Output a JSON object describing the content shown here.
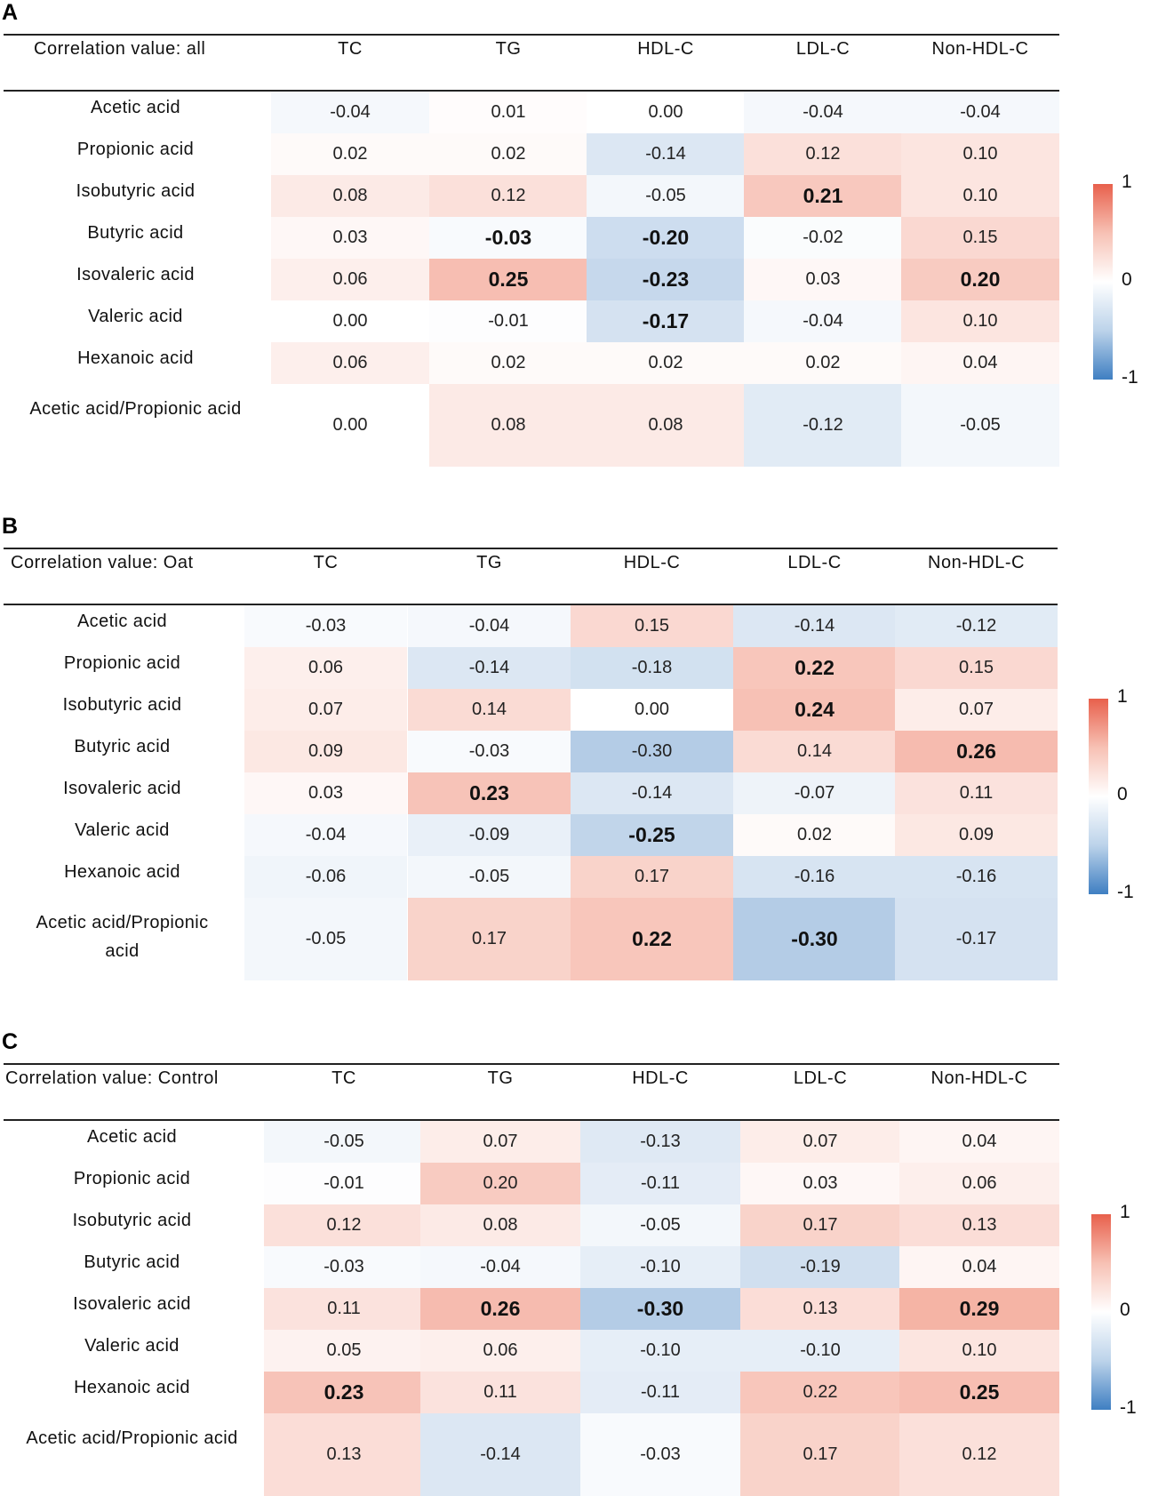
{
  "columns": [
    "TC",
    "TG",
    "HDL-C",
    "LDL-C",
    "Non-HDL-C"
  ],
  "rows": [
    "Acetic acid",
    "Propionic acid",
    "Isobutyric acid",
    "Butyric acid",
    "Isovaleric acid",
    "Valeric acid",
    "Hexanoic acid",
    "Acetic acid/Propionic acid"
  ],
  "legend": {
    "max": "1",
    "mid": "0",
    "min": "-1",
    "color_pos": "#e8604c",
    "color_neg": "#3f7fc2"
  },
  "chart_data": [
    {
      "type": "heatmap",
      "panel": "A",
      "title": "Correlation value: all",
      "columns": [
        "TC",
        "TG",
        "HDL-C",
        "LDL-C",
        "Non-HDL-C"
      ],
      "rows": [
        "Acetic acid",
        "Propionic acid",
        "Isobutyric acid",
        "Butyric acid",
        "Isovaleric acid",
        "Valeric acid",
        "Hexanoic acid",
        "Acetic acid/Propionic acid"
      ],
      "values": [
        [
          "-0.04",
          "0.01",
          "0.00",
          "-0.04",
          "-0.04"
        ],
        [
          "0.02",
          "0.02",
          "-0.14",
          "0.12",
          "0.10"
        ],
        [
          "0.08",
          "0.12",
          "-0.05",
          "0.21",
          "0.10"
        ],
        [
          "0.03",
          "-0.03",
          "-0.20",
          "-0.02",
          "0.15"
        ],
        [
          "0.06",
          "0.25",
          "-0.23",
          "0.03",
          "0.20"
        ],
        [
          "0.00",
          "-0.01",
          "-0.17",
          "-0.04",
          "0.10"
        ],
        [
          "0.06",
          "0.02",
          "0.02",
          "0.02",
          "0.04"
        ],
        [
          "0.00",
          "0.08",
          "0.08",
          "-0.12",
          "-0.05"
        ]
      ],
      "bold": [
        [
          3,
          1
        ],
        [
          3,
          2
        ],
        [
          2,
          3
        ],
        [
          4,
          1
        ],
        [
          4,
          2
        ],
        [
          4,
          4
        ],
        [
          5,
          2
        ]
      ],
      "color_range": [
        -1,
        1
      ]
    },
    {
      "type": "heatmap",
      "panel": "B",
      "title": "Correlation value: Oat",
      "columns": [
        "TC",
        "TG",
        "HDL-C",
        "LDL-C",
        "Non-HDL-C"
      ],
      "rows": [
        "Acetic acid",
        "Propionic acid",
        "Isobutyric acid",
        "Butyric acid",
        "Isovaleric acid",
        "Valeric acid",
        "Hexanoic acid",
        "Acetic acid/Propionic acid"
      ],
      "values": [
        [
          "-0.03",
          "-0.04",
          "0.15",
          "-0.14",
          "-0.12"
        ],
        [
          "0.06",
          "-0.14",
          "-0.18",
          "0.22",
          "0.15"
        ],
        [
          "0.07",
          "0.14",
          "0.00",
          "0.24",
          "0.07"
        ],
        [
          "0.09",
          "-0.03",
          "-0.30",
          "0.14",
          "0.26"
        ],
        [
          "0.03",
          "0.23",
          "-0.14",
          "-0.07",
          "0.11"
        ],
        [
          "-0.04",
          "-0.09",
          "-0.25",
          "0.02",
          "0.09"
        ],
        [
          "-0.06",
          "-0.05",
          "0.17",
          "-0.16",
          "-0.16"
        ],
        [
          "-0.05",
          "0.17",
          "0.22",
          "-0.30",
          "-0.17"
        ]
      ],
      "bold": [
        [
          1,
          3
        ],
        [
          2,
          3
        ],
        [
          3,
          4
        ],
        [
          4,
          1
        ],
        [
          5,
          2
        ],
        [
          7,
          2
        ],
        [
          7,
          3
        ]
      ],
      "color_range": [
        -1,
        1
      ]
    },
    {
      "type": "heatmap",
      "panel": "C",
      "title": "Correlation value: Control",
      "columns": [
        "TC",
        "TG",
        "HDL-C",
        "LDL-C",
        "Non-HDL-C"
      ],
      "rows": [
        "Acetic acid",
        "Propionic acid",
        "Isobutyric acid",
        "Butyric acid",
        "Isovaleric acid",
        "Valeric acid",
        "Hexanoic acid",
        "Acetic acid/Propionic acid"
      ],
      "values": [
        [
          "-0.05",
          "0.07",
          "-0.13",
          "0.07",
          "0.04"
        ],
        [
          "-0.01",
          "0.20",
          "-0.11",
          "0.03",
          "0.06"
        ],
        [
          "0.12",
          "0.08",
          "-0.05",
          "0.17",
          "0.13"
        ],
        [
          "-0.03",
          "-0.04",
          "-0.10",
          "-0.19",
          "0.04"
        ],
        [
          "0.11",
          "0.26",
          "-0.30",
          "0.13",
          "0.29"
        ],
        [
          "0.05",
          "0.06",
          "-0.10",
          "-0.10",
          "0.10"
        ],
        [
          "0.23",
          "0.11",
          "-0.11",
          "0.22",
          "0.25"
        ],
        [
          "0.13",
          "-0.14",
          "-0.03",
          "0.17",
          "0.12"
        ]
      ],
      "bold": [
        [
          4,
          1
        ],
        [
          4,
          2
        ],
        [
          4,
          4
        ],
        [
          6,
          0
        ],
        [
          6,
          4
        ]
      ],
      "color_range": [
        -1,
        1
      ]
    }
  ]
}
